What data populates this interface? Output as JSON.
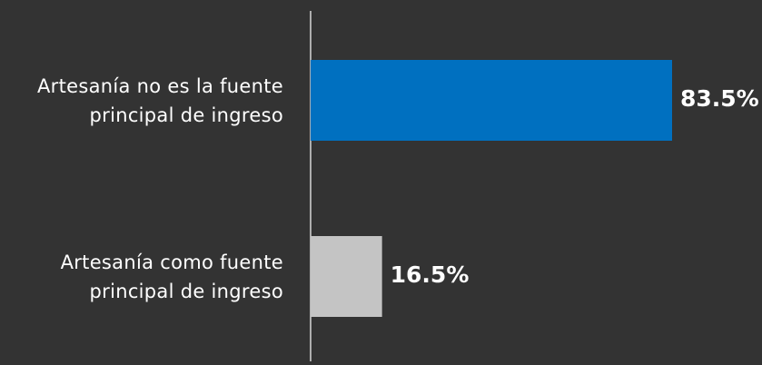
{
  "chart_data": {
    "type": "bar",
    "orientation": "horizontal",
    "categories": [
      [
        "Artesanía no es la fuente",
        "principal de ingreso"
      ],
      [
        "Artesanía como fuente",
        "principal de ingreso"
      ]
    ],
    "values": [
      83.5,
      16.5
    ],
    "value_labels": [
      "83.5%",
      "16.5%"
    ],
    "xlim": [
      0,
      100
    ],
    "bar_colors": [
      "#0070C0",
      "#C4C4C4"
    ],
    "title": "",
    "xlabel": "",
    "ylabel": "",
    "grid": false,
    "legend": "none"
  },
  "colors": {
    "background": "#333333",
    "axis": "#ffffff",
    "text": "#ffffff"
  }
}
